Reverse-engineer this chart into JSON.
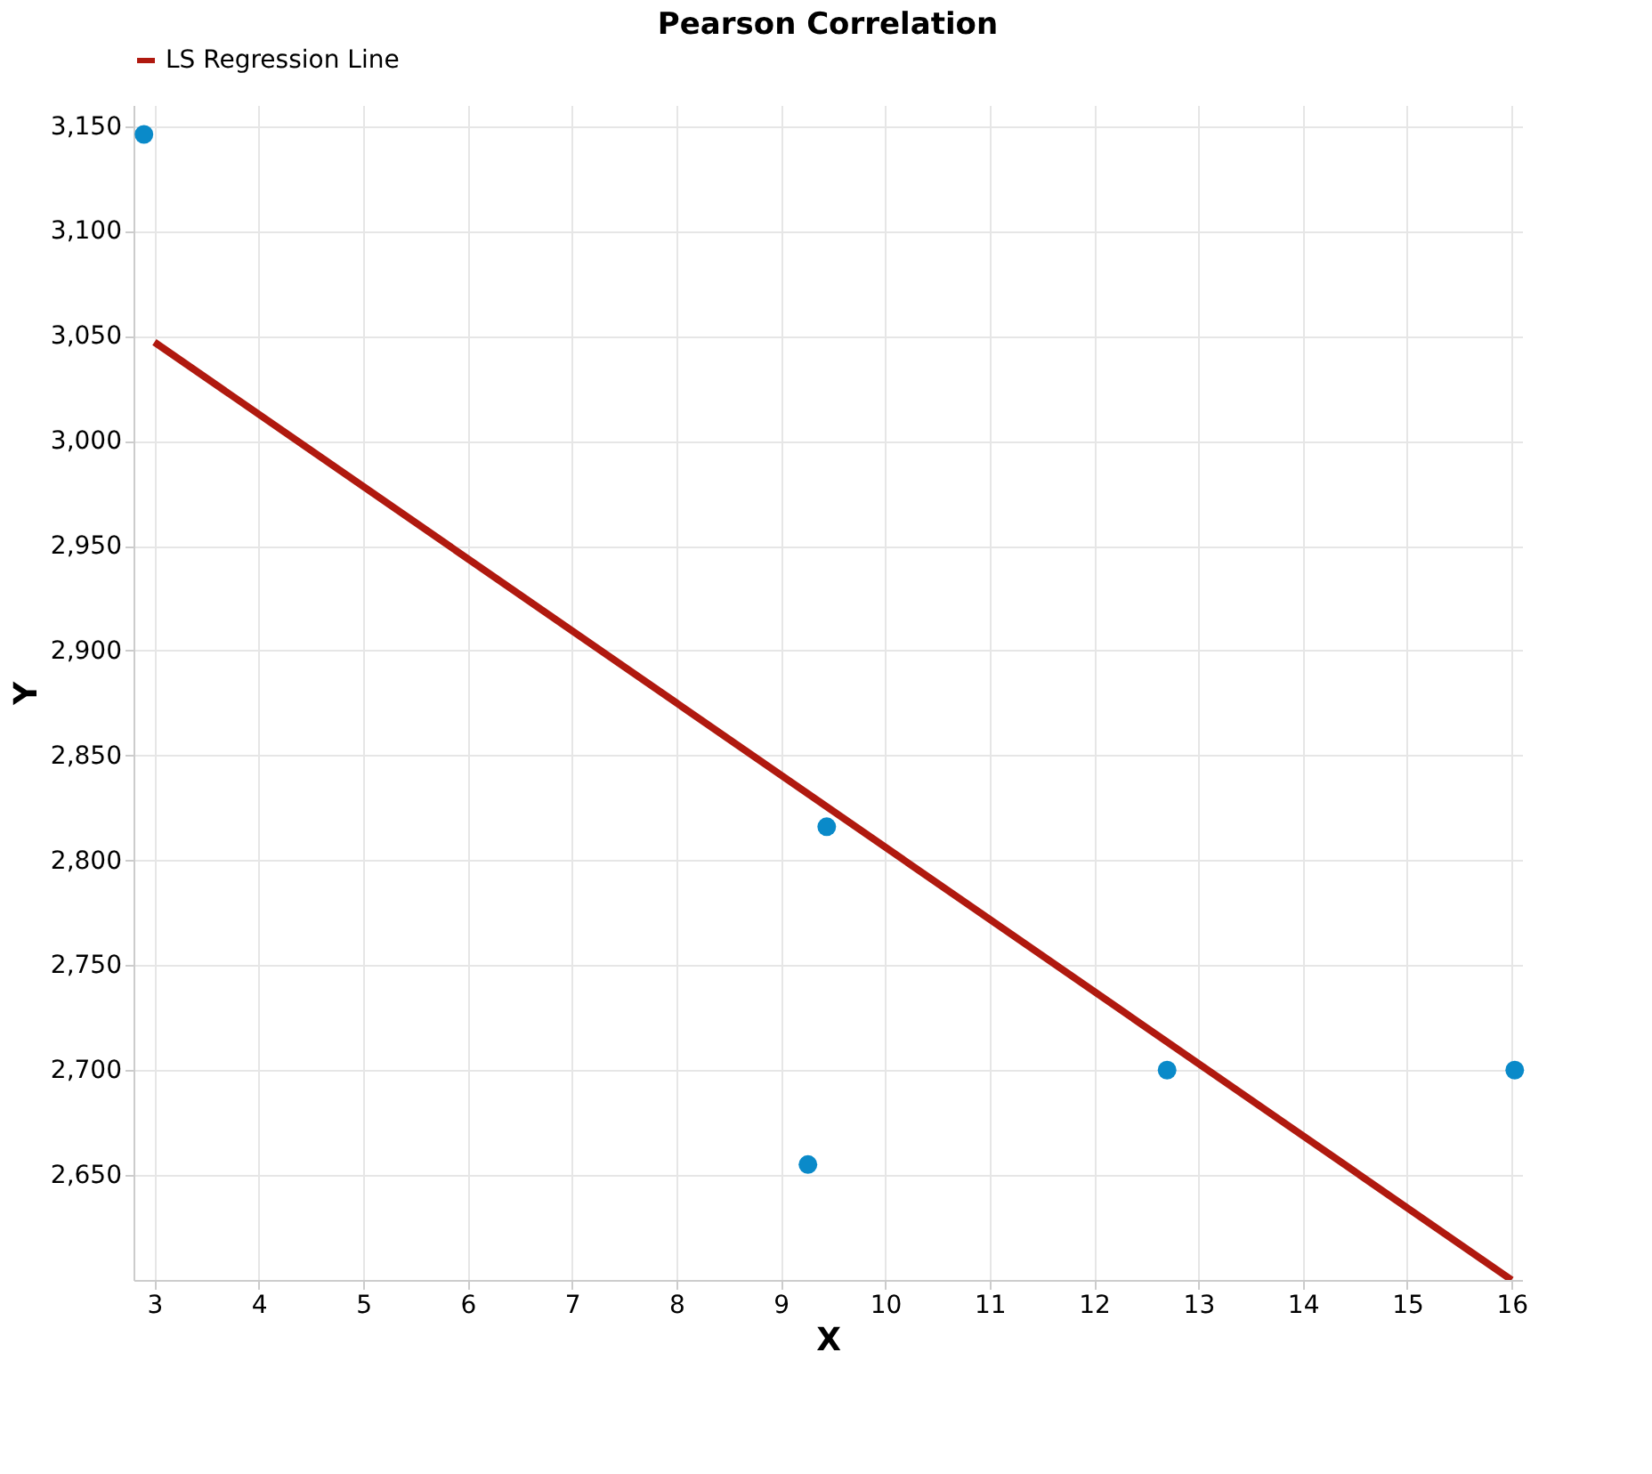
{
  "chart_data": {
    "type": "scatter",
    "title": "Pearson Correlation",
    "xlabel": "X",
    "ylabel": "Y",
    "xlim": [
      2.8,
      16.1
    ],
    "xticks": [
      3,
      4,
      5,
      6,
      7,
      8,
      9,
      10,
      11,
      12,
      13,
      14,
      15,
      16
    ],
    "ylim": [
      2600,
      3160
    ],
    "yticks": [
      {
        "value": 2650,
        "label": "2,650"
      },
      {
        "value": 2700,
        "label": "2,700"
      },
      {
        "value": 2750,
        "label": "2,750"
      },
      {
        "value": 2800,
        "label": "2,800"
      },
      {
        "value": 2850,
        "label": "2,850"
      },
      {
        "value": 2900,
        "label": "2,900"
      },
      {
        "value": 2950,
        "label": "2,950"
      },
      {
        "value": 3000,
        "label": "3,000"
      },
      {
        "value": 3050,
        "label": "3,050"
      },
      {
        "value": 3100,
        "label": "3,100"
      },
      {
        "value": 3150,
        "label": "3,150"
      }
    ],
    "grid": true,
    "legend": "top",
    "series": [
      {
        "color": "#0a8ac9",
        "marker": "circle",
        "x": [
          2.9,
          9.44,
          9.26,
          12.7,
          16.03
        ],
        "values": [
          3146,
          2816,
          2655,
          2700,
          2700
        ]
      },
      {
        "type": "line",
        "name": "LS Regression Line",
        "color": "#b0190f",
        "x": [
          3,
          16
        ],
        "values": [
          3047,
          2600
        ],
        "line_style": "solid"
      }
    ]
  }
}
